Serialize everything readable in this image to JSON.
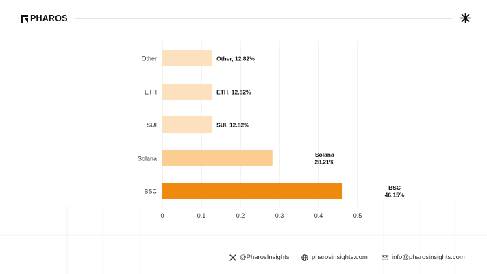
{
  "brand": {
    "logo_text": "PHAROS"
  },
  "chart_data": {
    "type": "bar",
    "orientation": "horizontal",
    "categories": [
      "Other",
      "ETH",
      "SUI",
      "Solana",
      "BSC"
    ],
    "values": [
      0.1282,
      0.1282,
      0.1282,
      0.2821,
      0.4615
    ],
    "data_labels": [
      "Other, 12.82%",
      "ETH, 12.82%",
      "SUI, 12.82%",
      "Solana\n28.21%",
      "BSC\n46.15%"
    ],
    "bar_colors": [
      "#fde0bd",
      "#fde0bd",
      "#fde0bd",
      "#fccd91",
      "#f08a0f"
    ],
    "xticks": [
      "0",
      "0.1",
      "0.2",
      "0.3",
      "0.4",
      "0.5"
    ],
    "xlim": [
      0,
      0.5
    ],
    "grid": "vertical",
    "title": "",
    "xlabel": "",
    "ylabel": ""
  },
  "footer": {
    "twitter": {
      "icon": "x-icon",
      "text": "@PharosInsights"
    },
    "website": {
      "icon": "globe-icon",
      "text": "pharosinsights.com"
    },
    "email": {
      "icon": "mail-icon",
      "text": "info@pharosinsights.com"
    }
  }
}
